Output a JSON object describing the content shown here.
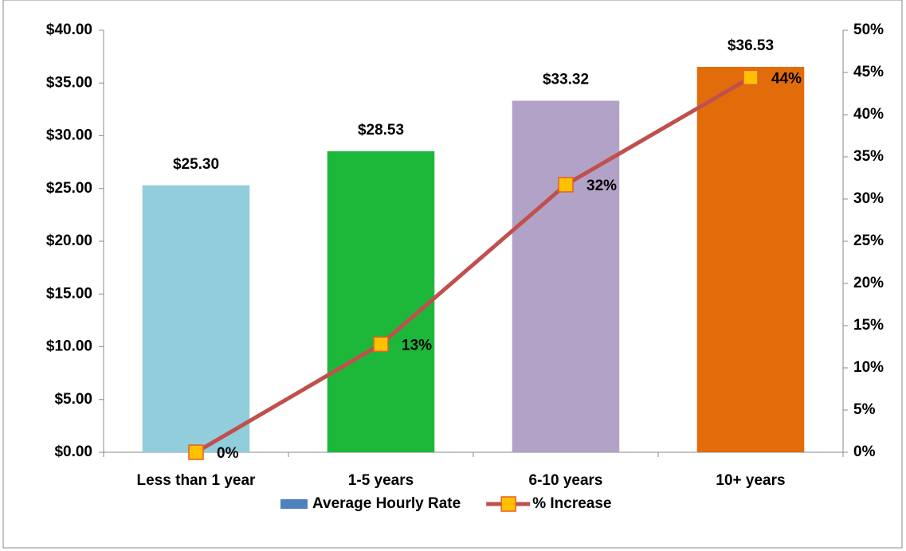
{
  "chart_data": {
    "type": "bar-line",
    "categories": [
      "Less than 1 year",
      "1-5 years",
      "6-10 years",
      "10+ years"
    ],
    "series": [
      {
        "name": "Average Hourly Rate",
        "type": "bar",
        "color": "#4f81bd",
        "colors": [
          "#92cddc",
          "#1db83a",
          "#b3a2c7",
          "#e36c0a"
        ],
        "values": [
          25.3,
          28.53,
          33.32,
          36.53
        ],
        "value_labels": [
          "$25.30",
          "$28.53",
          "$33.32",
          "$36.53"
        ]
      },
      {
        "name": "% Increase",
        "type": "line",
        "axis": "y2",
        "color": "#c0504d",
        "marker_color": "#ffc000",
        "values": [
          0,
          12.8,
          31.7,
          44.4
        ],
        "value_labels": [
          "0%",
          "13%",
          "32%",
          "44%"
        ]
      }
    ],
    "ylim": [
      0,
      40
    ],
    "yticks": [
      {
        "value": 0,
        "label": "$0.00"
      },
      {
        "value": 5,
        "label": "$5.00"
      },
      {
        "value": 10,
        "label": "$10.00"
      },
      {
        "value": 15,
        "label": "$15.00"
      },
      {
        "value": 20,
        "label": "$20.00"
      },
      {
        "value": 25,
        "label": "$25.00"
      },
      {
        "value": 30,
        "label": "$30.00"
      },
      {
        "value": 35,
        "label": "$35.00"
      },
      {
        "value": 40,
        "label": "$40.00"
      }
    ],
    "y2lim": [
      0,
      50
    ],
    "y2ticks": [
      {
        "value": 0,
        "label": "0%"
      },
      {
        "value": 5,
        "label": "5%"
      },
      {
        "value": 10,
        "label": "10%"
      },
      {
        "value": 15,
        "label": "15%"
      },
      {
        "value": 20,
        "label": "20%"
      },
      {
        "value": 25,
        "label": "25%"
      },
      {
        "value": 30,
        "label": "30%"
      },
      {
        "value": 35,
        "label": "35%"
      },
      {
        "value": 40,
        "label": "40%"
      },
      {
        "value": 45,
        "label": "45%"
      },
      {
        "value": 50,
        "label": "50%"
      }
    ],
    "legend": "bottom"
  }
}
